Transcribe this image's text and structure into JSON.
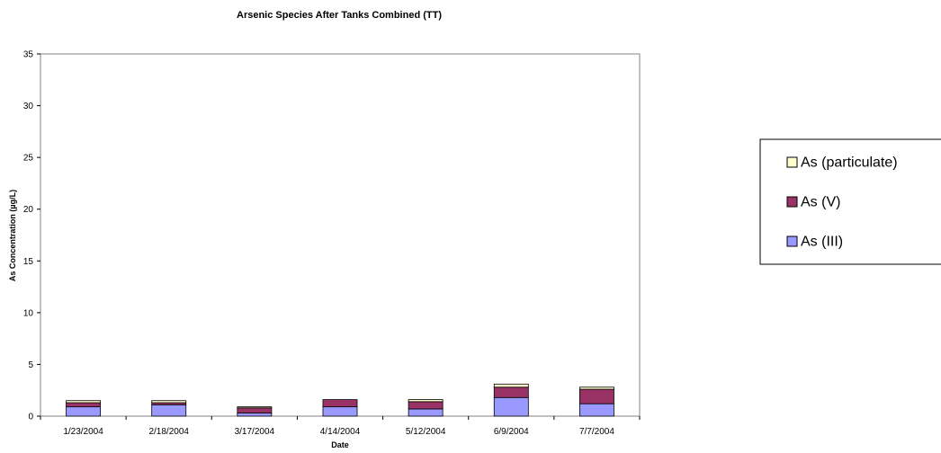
{
  "chart_data": {
    "type": "bar",
    "stacked": true,
    "title": "Arsenic Species After Tanks Combined (TT)",
    "xlabel": "Date",
    "ylabel": "As Concentration (µg/L)",
    "ylim": [
      0,
      35
    ],
    "yticks": [
      0,
      5,
      10,
      15,
      20,
      25,
      30,
      35
    ],
    "grid": false,
    "legend_position": "right",
    "categories": [
      "1/23/2004",
      "2/18/2004",
      "3/17/2004",
      "4/14/2004",
      "5/12/2004",
      "6/9/2004",
      "7/7/2004"
    ],
    "series": [
      {
        "name": "As (III)",
        "color": "#9999ff",
        "values": [
          0.9,
          1.1,
          0.3,
          0.9,
          0.7,
          1.8,
          1.2
        ]
      },
      {
        "name": "As (V)",
        "color": "#993366",
        "values": [
          0.4,
          0.2,
          0.5,
          0.7,
          0.7,
          1.0,
          1.4
        ]
      },
      {
        "name": "As (particulate)",
        "color": "#ffffcc",
        "values": [
          0.2,
          0.2,
          0.1,
          0.0,
          0.2,
          0.3,
          0.2
        ]
      }
    ],
    "legend_order": [
      "As (particulate)",
      "As (V)",
      "As (III)"
    ]
  }
}
